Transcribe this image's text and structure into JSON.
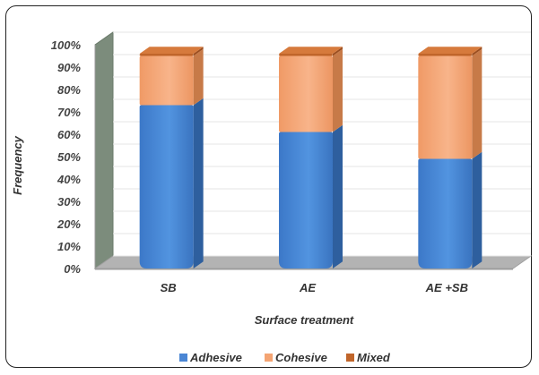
{
  "chart_data": {
    "type": "bar",
    "stacked": true,
    "categories": [
      "SB",
      "AE",
      "AE +SB"
    ],
    "series": [
      {
        "name": "Adhesive",
        "values": [
          73,
          61,
          49
        ],
        "color": "#4a86d4"
      },
      {
        "name": "Cohesive",
        "values": [
          22,
          34,
          46
        ],
        "color": "#f4a473"
      },
      {
        "name": "Mixed",
        "values": [
          1,
          1,
          1
        ],
        "color": "#c0652a"
      }
    ],
    "ylabel": "Frequency",
    "xlabel": "Surface treatment",
    "ylim": [
      0,
      100
    ],
    "yticks": [
      "0%",
      "10%",
      "20%",
      "30%",
      "40%",
      "50%",
      "60%",
      "70%",
      "80%",
      "90%",
      "100%"
    ],
    "legend_position": "bottom",
    "three_d": true
  }
}
